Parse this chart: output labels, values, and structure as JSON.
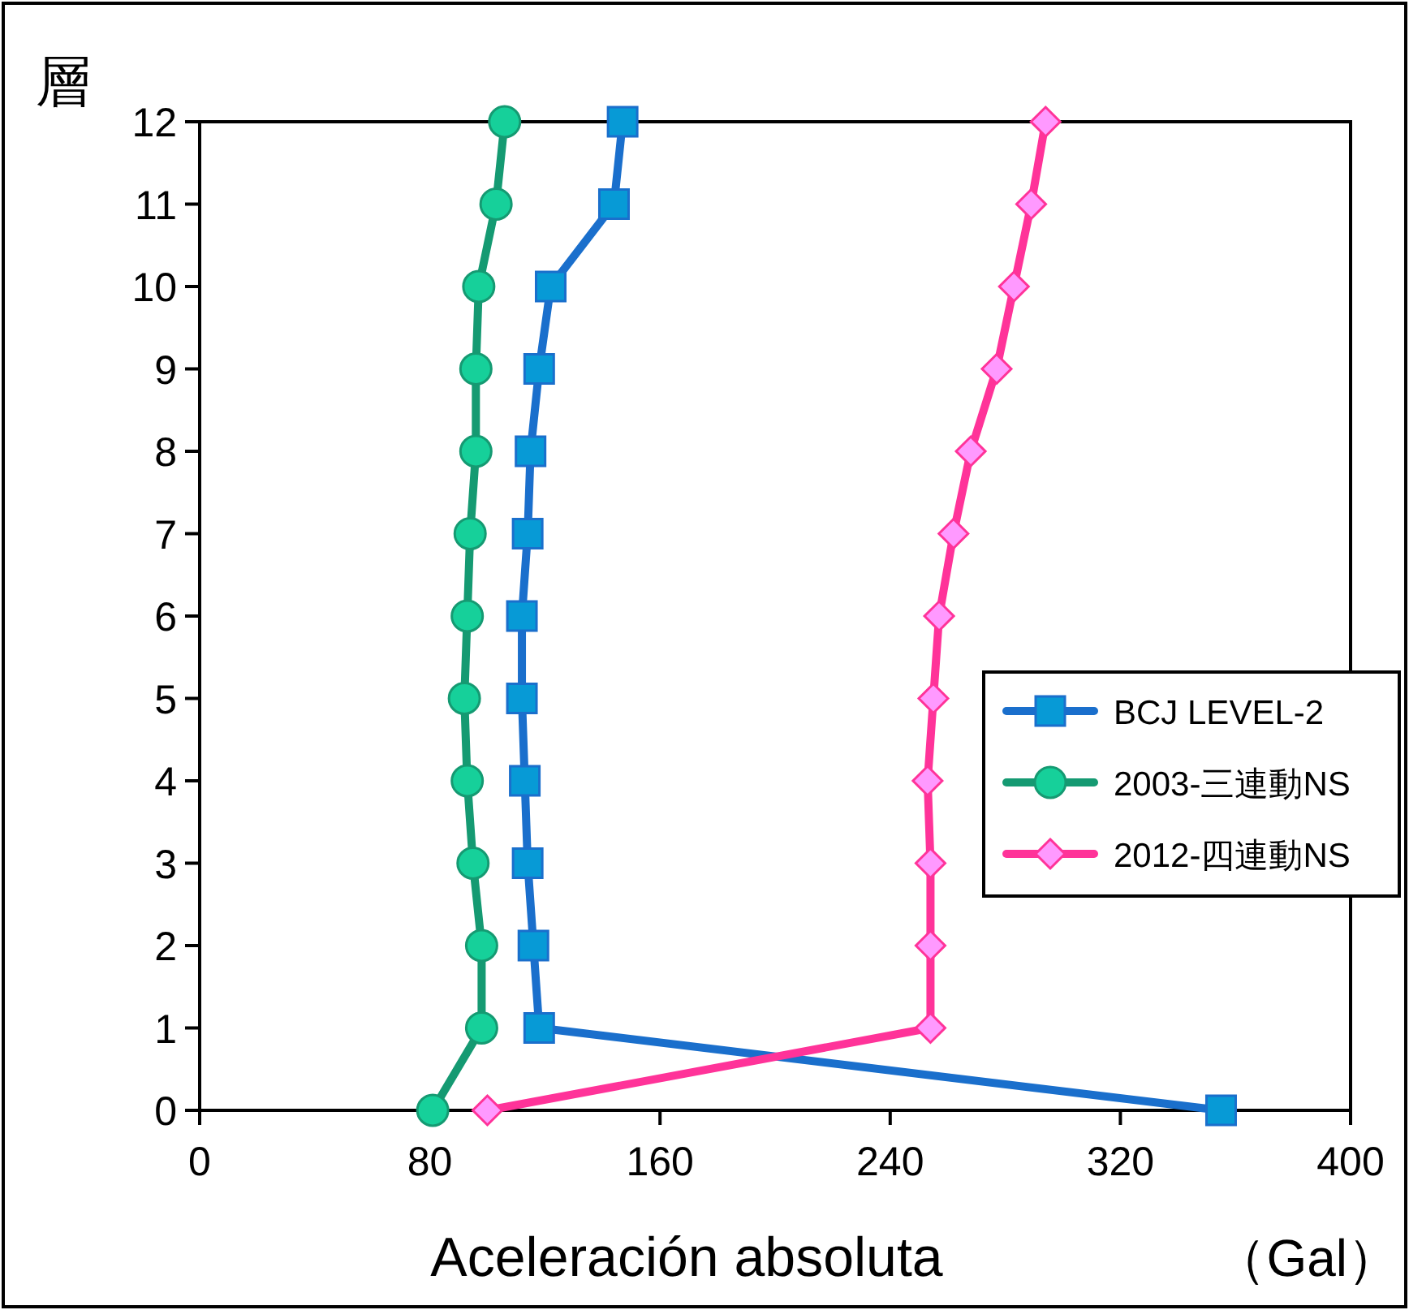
{
  "chart_data": {
    "type": "line",
    "ylabel": "層",
    "xlabel": "Aceleración absoluta",
    "annotations": [
      "（Gal）"
    ],
    "xlim": [
      0,
      400
    ],
    "xticks": [
      0,
      80,
      160,
      240,
      320,
      400
    ],
    "ylim": [
      0,
      12
    ],
    "yticks": [
      0,
      1,
      2,
      3,
      4,
      5,
      6,
      7,
      8,
      9,
      10,
      11,
      12
    ],
    "legend": "right",
    "line_style": "solid",
    "series": [
      {
        "name": "BCJ LEVEL-2",
        "color": "#1a6fcc",
        "marker": "square",
        "x": [
          355,
          118,
          116,
          114,
          113,
          112,
          112,
          114,
          115,
          118,
          122,
          144,
          147
        ],
        "values": [
          0,
          1,
          2,
          3,
          4,
          5,
          6,
          7,
          8,
          9,
          10,
          11,
          12
        ],
        "colors": [
          "#079ad6",
          "#079ad6",
          "#079ad6",
          "#079ad6",
          "#079ad6",
          "#079ad6",
          "#079ad6",
          "#079ad6",
          "#079ad6",
          "#079ad6",
          "#079ad6",
          "#079ad6",
          "#079ad6"
        ]
      },
      {
        "name": "2003-三連動NS",
        "color": "#159a72",
        "marker": "circle",
        "x": [
          81,
          98,
          98,
          95,
          93,
          92,
          93,
          94,
          96,
          96,
          97,
          103,
          106
        ],
        "values": [
          0,
          1,
          2,
          3,
          4,
          5,
          6,
          7,
          8,
          9,
          10,
          11,
          12
        ],
        "colors": [
          "#16d09a",
          "#16d09a",
          "#16d09a",
          "#16d09a",
          "#16d09a",
          "#16d09a",
          "#16d09a",
          "#16d09a",
          "#16d09a",
          "#16d09a",
          "#16d09a",
          "#16d09a",
          "#16d09a"
        ]
      },
      {
        "name": "2012-四連動NS",
        "color": "#ff3399",
        "marker": "diamond",
        "x": [
          100,
          254,
          254,
          254,
          253,
          255,
          257,
          262,
          268,
          277,
          283,
          289,
          294
        ],
        "values": [
          0,
          1,
          2,
          3,
          4,
          5,
          6,
          7,
          8,
          9,
          10,
          11,
          12
        ],
        "colors": [
          "#ff99ff",
          "#ff99ff",
          "#ff99ff",
          "#ff99ff",
          "#ff99ff",
          "#ff99ff",
          "#ff99ff",
          "#ff99ff",
          "#ff99ff",
          "#ff99ff",
          "#ff99ff",
          "#ff99ff",
          "#ff99ff"
        ]
      }
    ]
  }
}
